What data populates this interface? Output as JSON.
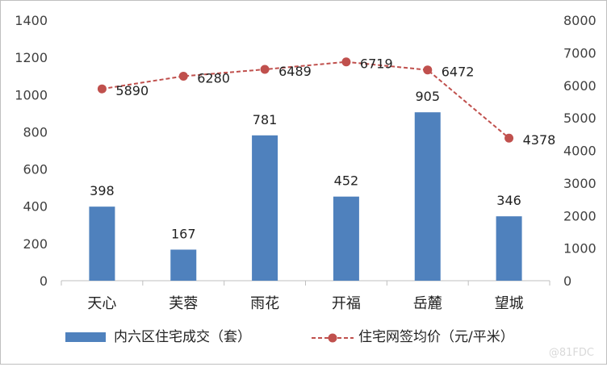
{
  "chart_data": {
    "type": "bar",
    "categories": [
      "天心",
      "芙蓉",
      "雨花",
      "开福",
      "岳麓",
      "望城"
    ],
    "series": [
      {
        "name": "内六区住宅成交（套）",
        "type": "bar",
        "axis": "left",
        "values": [
          398,
          167,
          781,
          452,
          905,
          346
        ],
        "color": "#4f81bd"
      },
      {
        "name": "住宅网签均价（元/平米）",
        "type": "line",
        "axis": "right",
        "values": [
          5890,
          6280,
          6489,
          6719,
          6472,
          4378
        ],
        "color": "#c0504d",
        "line_style": "dashed"
      }
    ],
    "y_left": {
      "min": 0,
      "max": 1400,
      "step": 200,
      "ticks": [
        "0",
        "200",
        "400",
        "600",
        "800",
        "1000",
        "1200",
        "1400"
      ]
    },
    "y_right": {
      "min": 0,
      "max": 8000,
      "step": 1000,
      "ticks": [
        "0",
        "1000",
        "2000",
        "3000",
        "4000",
        "5000",
        "6000",
        "7000",
        "8000"
      ]
    },
    "title": "",
    "xlabel": "",
    "ylabel": "",
    "grid": false,
    "legend_position": "bottom"
  },
  "watermark": "@81FDC"
}
